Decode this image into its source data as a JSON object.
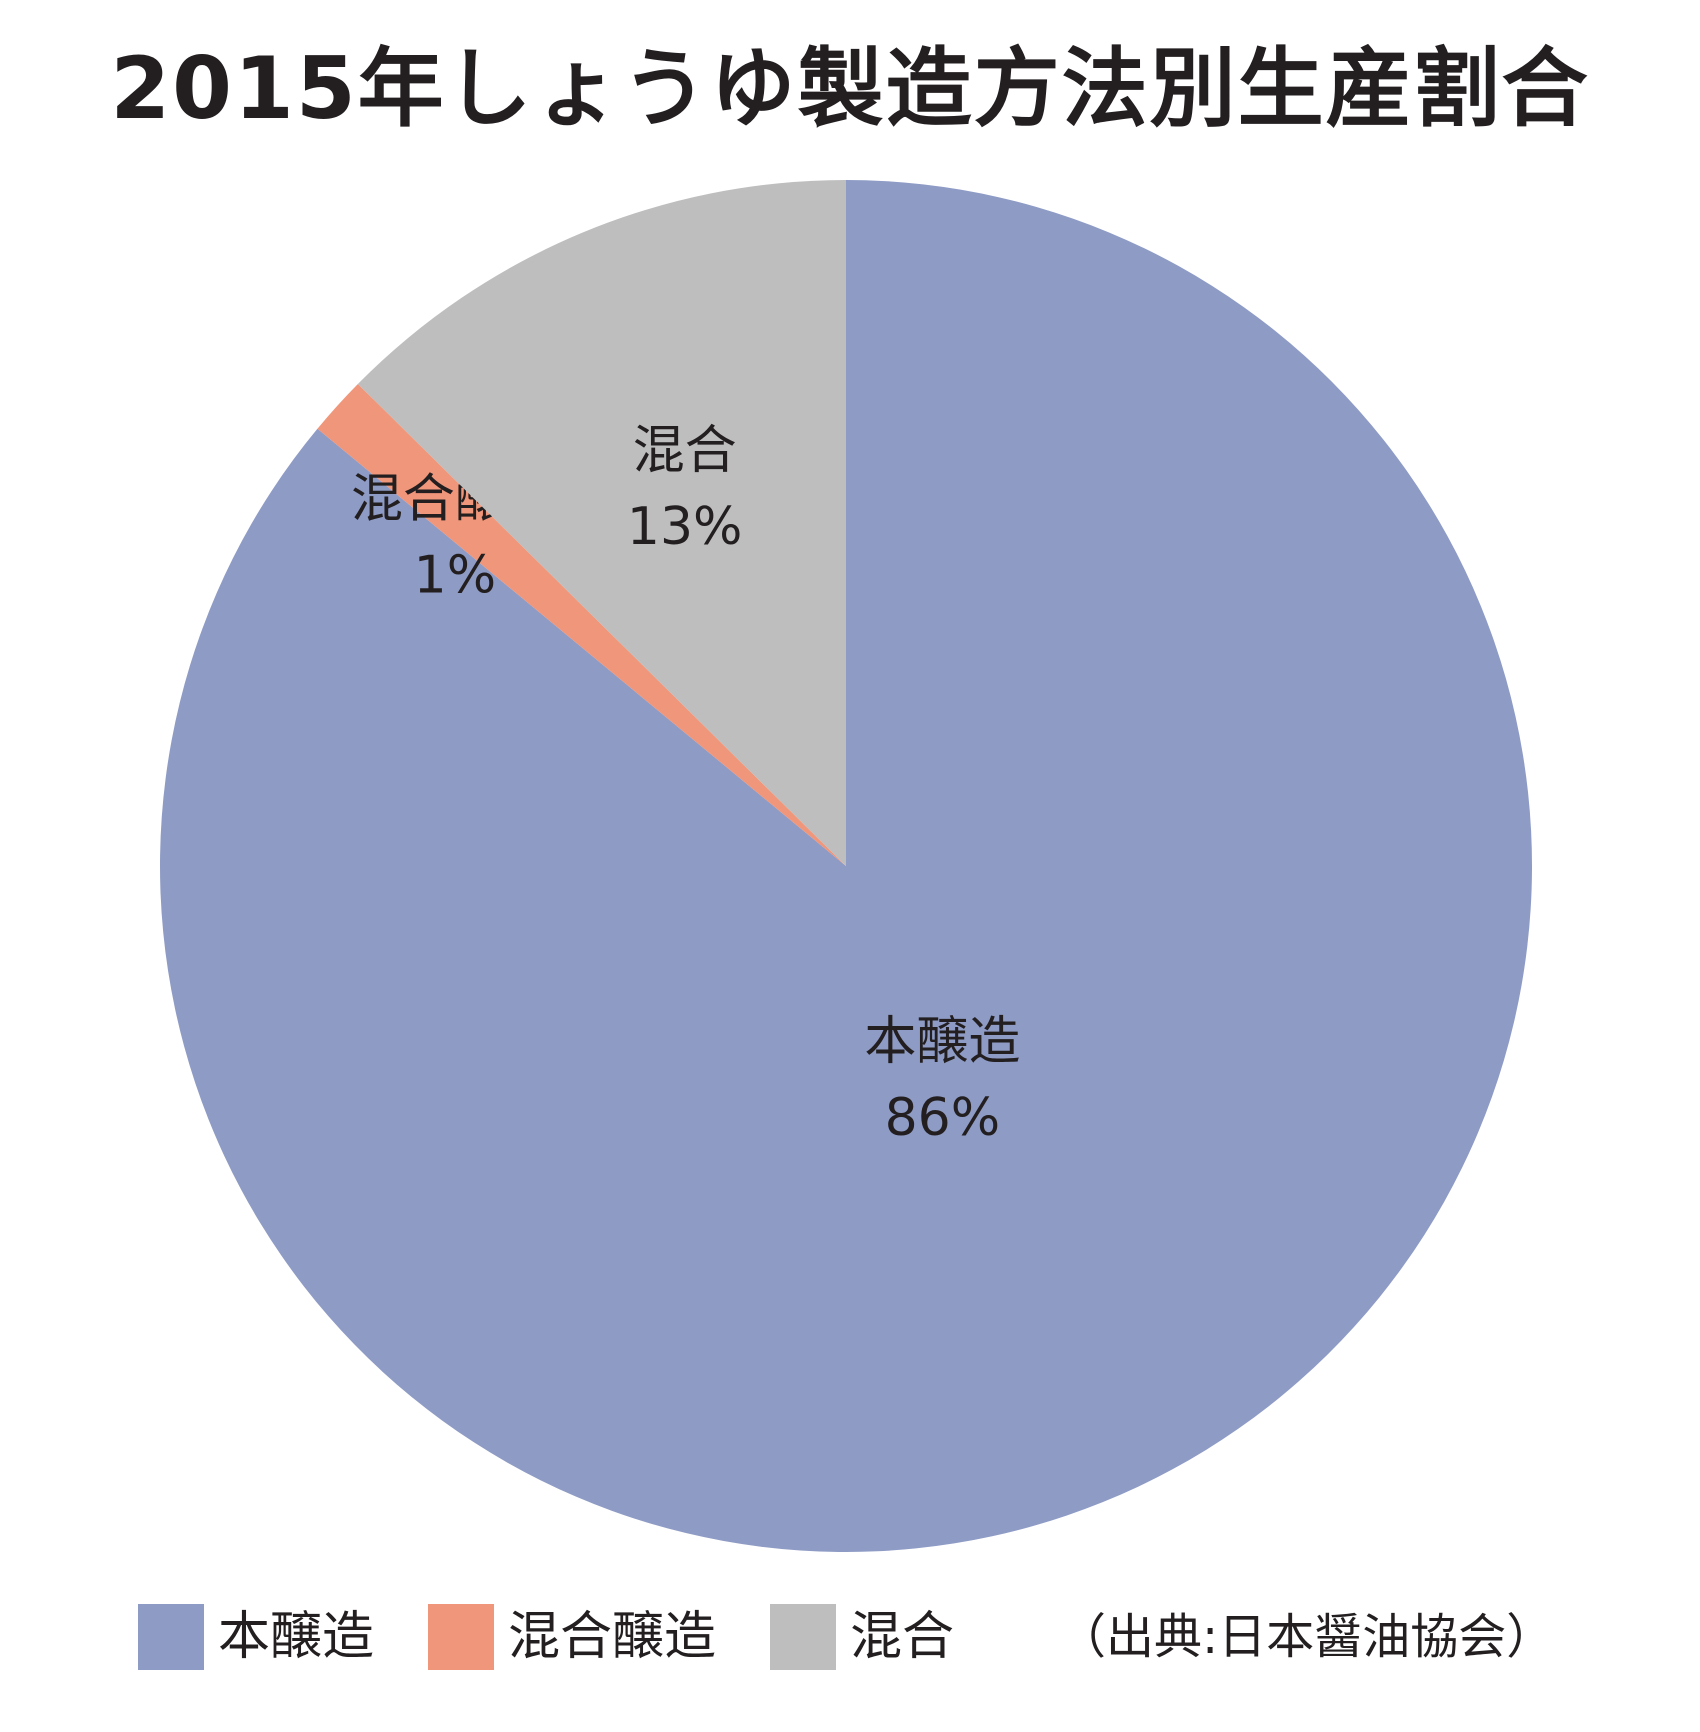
{
  "chart_data": {
    "type": "pie",
    "title": "2015年しょうゆ製造方法別生産割合",
    "slices": [
      {
        "name": "本醸造",
        "value": 86,
        "label": "86%",
        "color": "#8e9bc5"
      },
      {
        "name": "混合醸造",
        "value": 1.4,
        "label": "1%",
        "color": "#f0967a"
      },
      {
        "name": "混合",
        "value": 12.6,
        "label": "13%",
        "color": "#bebebe"
      }
    ],
    "legend": {
      "placement": "bottom",
      "items": [
        "本醸造",
        "混合醸造",
        "混合"
      ]
    },
    "source": "（出典:日本醤油協会）"
  }
}
